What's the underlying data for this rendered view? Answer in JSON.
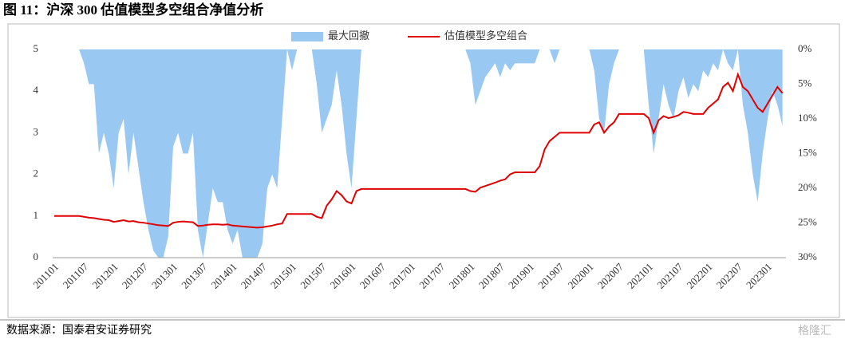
{
  "chart_data": {
    "type": "line",
    "title": "图 11：沪深 300 估值模型多空组合净值分析",
    "source": "数据来源：国泰君安证券研究",
    "watermark": "格隆汇",
    "categories": [
      "201101",
      null,
      null,
      null,
      null,
      null,
      "201107",
      null,
      null,
      null,
      null,
      null,
      "201201",
      null,
      null,
      null,
      null,
      null,
      "201207",
      null,
      null,
      null,
      null,
      null,
      "201301",
      null,
      null,
      null,
      null,
      null,
      "201307",
      null,
      null,
      null,
      null,
      null,
      "201401",
      null,
      null,
      null,
      null,
      null,
      "201407",
      null,
      null,
      null,
      null,
      null,
      "201501",
      null,
      null,
      null,
      null,
      null,
      "201507",
      null,
      null,
      null,
      null,
      null,
      "201601",
      null,
      null,
      null,
      null,
      null,
      "201607",
      null,
      null,
      null,
      null,
      null,
      "201701",
      null,
      null,
      null,
      null,
      null,
      "201707",
      null,
      null,
      null,
      null,
      null,
      "201801",
      null,
      null,
      null,
      null,
      null,
      "201807",
      null,
      null,
      null,
      null,
      null,
      "201901",
      null,
      null,
      null,
      null,
      null,
      "201907",
      null,
      null,
      null,
      null,
      null,
      "202001",
      null,
      null,
      null,
      null,
      null,
      "202007",
      null,
      null,
      null,
      null,
      null,
      "202101",
      null,
      null,
      null,
      null,
      null,
      "202107",
      null,
      null,
      null,
      null,
      null,
      "202201",
      null,
      null,
      null,
      null,
      null,
      "202207",
      null,
      null,
      null,
      null,
      null,
      "202301",
      null,
      null,
      null
    ],
    "series": [
      {
        "name": "最大回撤",
        "type": "area",
        "axis": "y2",
        "color": "#99c9f2",
        "values": [
          0,
          0,
          0,
          0,
          0,
          0,
          2,
          5,
          5,
          15,
          12,
          15,
          20,
          12,
          10,
          18,
          12,
          17,
          22,
          26,
          29,
          30,
          30,
          27,
          14,
          12,
          15,
          15,
          12,
          26,
          30,
          25,
          20,
          22,
          22,
          26,
          28,
          26,
          30,
          30,
          30,
          30,
          28,
          20,
          18,
          20,
          10,
          0,
          3,
          0,
          0,
          0,
          0,
          5,
          12,
          10,
          8,
          3,
          8,
          15,
          20,
          10,
          0,
          0,
          0,
          0,
          0,
          0,
          0,
          0,
          0,
          0,
          0,
          0,
          0,
          0,
          0,
          0,
          0,
          0,
          0,
          0,
          0,
          0,
          2,
          8,
          6,
          4,
          3,
          2,
          4,
          2,
          3,
          2,
          2,
          2,
          2,
          2,
          0,
          0,
          0,
          2,
          0,
          0,
          0,
          0,
          0,
          0,
          0,
          3,
          10,
          12,
          5,
          2,
          0,
          0,
          0,
          0,
          0,
          0,
          8,
          15,
          10,
          5,
          8,
          10,
          6,
          4,
          7,
          5,
          6,
          3,
          4,
          2,
          3,
          0,
          2,
          3,
          0,
          8,
          12,
          18,
          22,
          15,
          10,
          6,
          8,
          11
        ]
      },
      {
        "name": "估值模型多空组合",
        "type": "line",
        "color": "#e00000",
        "values": [
          1,
          1,
          1,
          1,
          1,
          1,
          0.98,
          0.96,
          0.95,
          0.93,
          0.91,
          0.9,
          0.86,
          0.88,
          0.9,
          0.87,
          0.88,
          0.85,
          0.84,
          0.82,
          0.8,
          0.78,
          0.77,
          0.76,
          0.84,
          0.86,
          0.87,
          0.86,
          0.85,
          0.76,
          0.77,
          0.79,
          0.8,
          0.8,
          0.79,
          0.8,
          0.77,
          0.76,
          0.75,
          0.74,
          0.73,
          0.72,
          0.73,
          0.75,
          0.77,
          0.8,
          0.82,
          1.05,
          1.05,
          1.05,
          1.05,
          1.05,
          1.05,
          0.98,
          0.95,
          1.25,
          1.4,
          1.6,
          1.5,
          1.35,
          1.3,
          1.6,
          1.65,
          1.65,
          1.65,
          1.65,
          1.65,
          1.65,
          1.65,
          1.65,
          1.65,
          1.65,
          1.65,
          1.65,
          1.65,
          1.65,
          1.65,
          1.65,
          1.65,
          1.65,
          1.65,
          1.65,
          1.65,
          1.65,
          1.6,
          1.58,
          1.68,
          1.72,
          1.76,
          1.8,
          1.85,
          1.88,
          2.0,
          2.05,
          2.05,
          2.05,
          2.05,
          2.05,
          2.2,
          2.6,
          2.8,
          2.9,
          3.0,
          3.0,
          3.0,
          3.0,
          3.0,
          3.0,
          3.0,
          3.2,
          3.25,
          3.0,
          3.15,
          3.25,
          3.45,
          3.45,
          3.45,
          3.45,
          3.45,
          3.45,
          3.35,
          3.0,
          3.3,
          3.4,
          3.35,
          3.38,
          3.42,
          3.5,
          3.48,
          3.45,
          3.45,
          3.45,
          3.6,
          3.7,
          3.8,
          4.1,
          4.2,
          4.0,
          4.4,
          4.1,
          4.0,
          3.8,
          3.6,
          3.5,
          3.7,
          3.9,
          4.1,
          3.95
        ]
      }
    ],
    "ylim": [
      0,
      5
    ],
    "yticks": [
      0,
      1,
      2,
      3,
      4,
      5
    ],
    "y2lim": [
      0,
      30
    ],
    "y2_inverted": true,
    "y2ticks": [
      {
        "value": 0,
        "label": "0%"
      },
      {
        "value": 5,
        "label": "5%"
      },
      {
        "value": 10,
        "label": "10%"
      },
      {
        "value": 15,
        "label": "15%"
      },
      {
        "value": 20,
        "label": "20%"
      },
      {
        "value": 25,
        "label": "25%"
      },
      {
        "value": 30,
        "label": "30%"
      }
    ],
    "legend": "top",
    "grid": false
  }
}
